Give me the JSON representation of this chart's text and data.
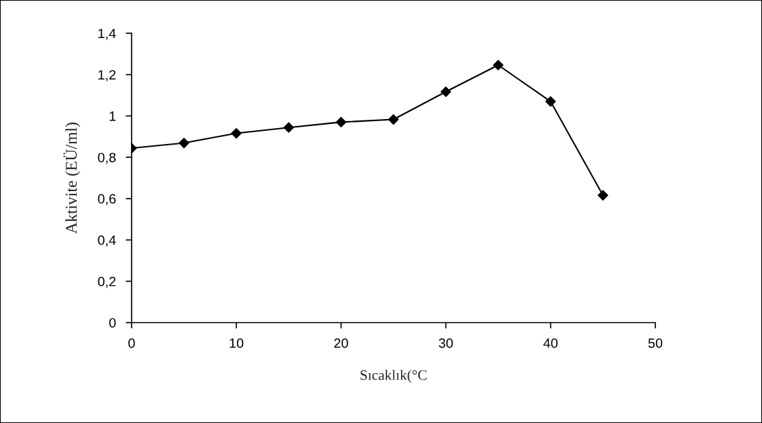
{
  "chart_data": {
    "type": "line",
    "xlabel": "Sıcaklık(°C",
    "ylabel": "Aktivite (EÜ/ml)",
    "x": [
      0,
      5,
      10,
      15,
      20,
      25,
      30,
      35,
      40,
      45
    ],
    "series": [
      {
        "color": "#000000",
        "values": [
          0.844,
          0.869,
          0.916,
          0.944,
          0.97,
          0.983,
          1.117,
          1.246,
          1.07,
          0.616
        ]
      }
    ],
    "xlim": [
      0,
      50
    ],
    "xticks": [
      0,
      10,
      20,
      30,
      40,
      50
    ],
    "ylim": [
      0,
      1.4
    ],
    "yticks": [
      0,
      {
        "value": 0.2,
        "label": "0,2"
      },
      {
        "value": 0.4,
        "label": "0,4"
      },
      {
        "value": 0.6,
        "label": "0,6"
      },
      {
        "value": 0.8,
        "label": "0,8"
      },
      1,
      {
        "value": 1.2,
        "label": "1,2"
      },
      {
        "value": 1.4,
        "label": "1,4"
      }
    ],
    "marker": "diamond",
    "line_style": "solid",
    "grid": false,
    "legend": false
  }
}
